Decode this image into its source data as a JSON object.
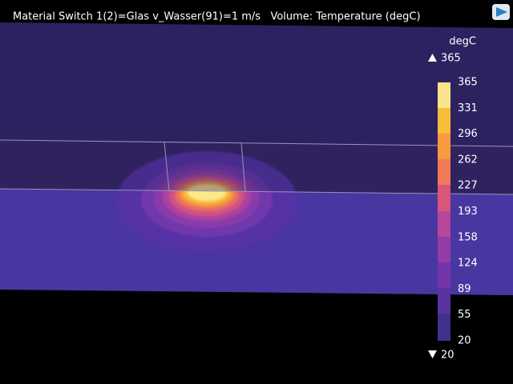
{
  "header": {
    "title": "Material Switch 1(2)=Glas v_Wasser(91)=1 m/s   Volume: Temperature (degC)"
  },
  "legend": {
    "unit": "degC",
    "max": "365",
    "min": "20",
    "ticks": [
      "365",
      "331",
      "296",
      "262",
      "227",
      "193",
      "158",
      "124",
      "89",
      "55",
      "20"
    ]
  }
}
